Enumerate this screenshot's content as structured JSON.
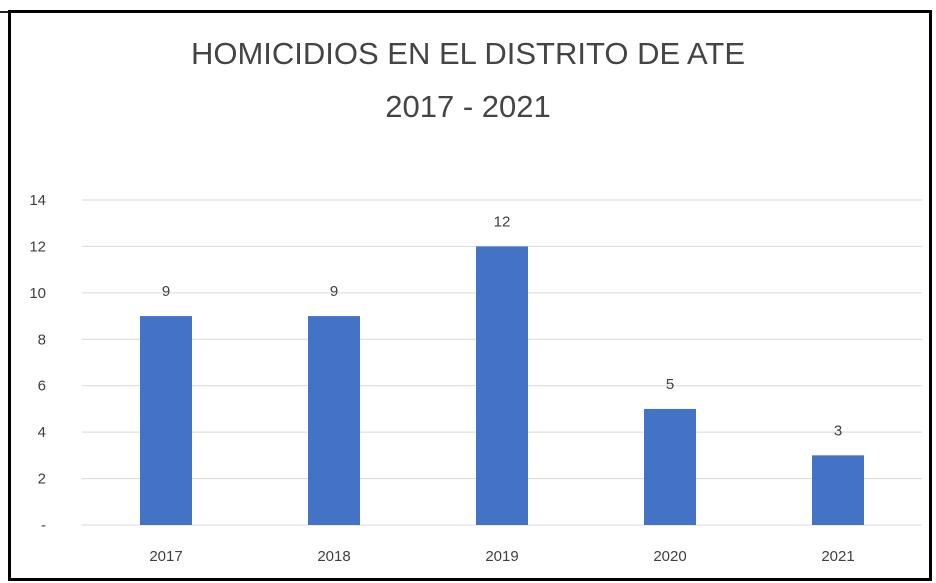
{
  "chart_data": {
    "type": "bar",
    "title": "HOMICIDIOS EN EL DISTRITO DE ATE",
    "subtitle": "2017 - 2021",
    "categories": [
      "2017",
      "2018",
      "2019",
      "2020",
      "2021"
    ],
    "values": [
      9,
      9,
      12,
      5,
      3
    ],
    "data_labels": [
      "9",
      "9",
      "12",
      "5",
      "3"
    ],
    "xlabel": "",
    "ylabel": "",
    "ylim": [
      0,
      14
    ],
    "yticks": [
      0,
      2,
      4,
      6,
      8,
      10,
      12,
      14
    ],
    "ytick_labels": [
      "-",
      "2",
      "4",
      "6",
      "8",
      "10",
      "12",
      "14"
    ],
    "grid": true,
    "legend": "none",
    "colors": {
      "bar": "#4472C4",
      "grid": "#D9D9D9",
      "text": "#404040"
    }
  }
}
